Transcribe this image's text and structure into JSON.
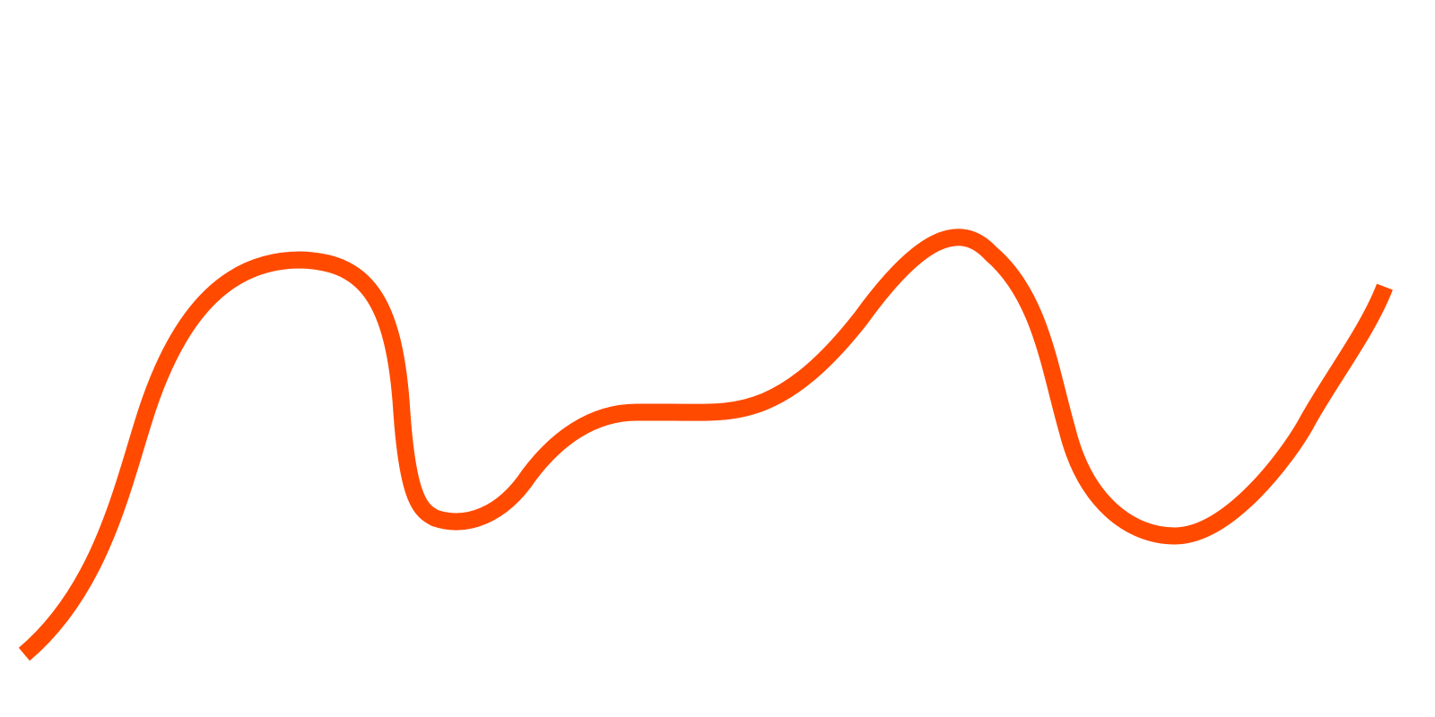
{
  "background_color": "#ffffff",
  "stroke_color": "#ff4a00",
  "shape": "squiggle-line"
}
